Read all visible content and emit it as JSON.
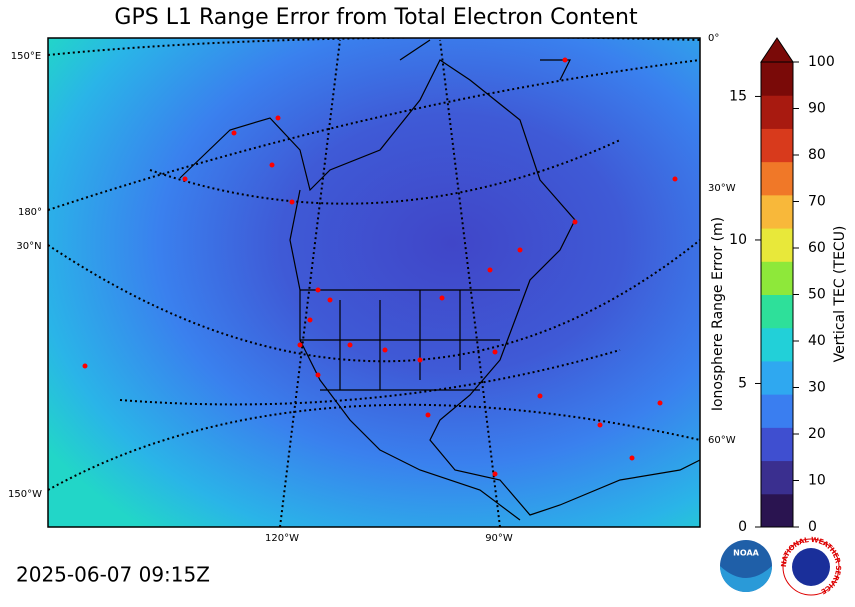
{
  "title": "GPS L1 Range Error from Total Electron Content",
  "timestamp": "2025-06-07 09:15Z",
  "map": {
    "graticule_labels": [
      "150°E",
      "180°",
      "30°N",
      "150°W",
      "0°",
      "30°W",
      "60°W",
      "120°W",
      "90°W"
    ]
  },
  "colorbar": {
    "label": "Vertical TEC (TECU)",
    "lim": [
      0,
      100
    ],
    "ticks": [
      0,
      10,
      20,
      30,
      40,
      50,
      60,
      70,
      80,
      90,
      100
    ],
    "colors": [
      "#2a1450",
      "#3a2f8f",
      "#3f4fd0",
      "#3a7ef0",
      "#2fa8f0",
      "#22d0d8",
      "#2ee09a",
      "#8ee83a",
      "#e8e83a",
      "#f8b83a",
      "#f07828",
      "#d83a1c",
      "#a81a10",
      "#7a0a08"
    ],
    "extend_color": "#7a0a08",
    "range_error": {
      "label": "Ionosphere Range Error (m)",
      "lim": [
        0,
        16.2
      ],
      "ticks": [
        0,
        5,
        10,
        15
      ]
    }
  },
  "logos": {
    "noaa": "NOAA",
    "nws": "NATIONAL WEATHER SERVICE"
  }
}
